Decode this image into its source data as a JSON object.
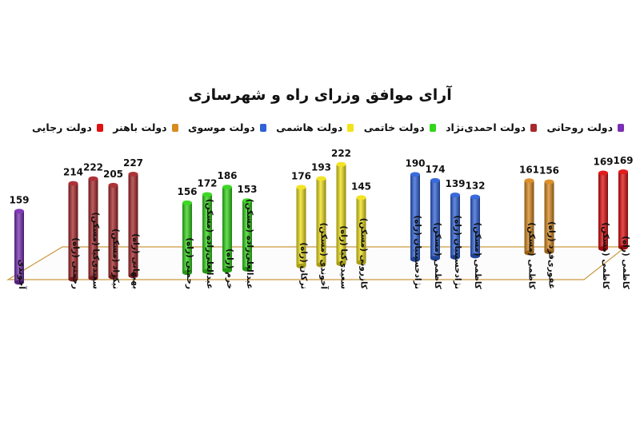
{
  "chart_data": {
    "type": "bar",
    "title": "آرای موافق وزرای راه و شهرسازی",
    "legend_placement": "top",
    "ylim": [
      0,
      240
    ],
    "grid": false,
    "series": [
      {
        "name": "دولت رجایی",
        "color": "#e01010",
        "bars": [
          {
            "label": "کاظمی (راه)",
            "value": 169
          },
          {
            "label": "کاظمی (مسکن)",
            "value": 169
          }
        ]
      },
      {
        "name": "دولت باهنر",
        "color": "#d98a20",
        "bars": [
          {
            "label": "غفوری‌فرد (راه)",
            "value": 156
          },
          {
            "label": "کاظمی (مسکن)",
            "value": 161
          }
        ]
      },
      {
        "name": "دولت موسوی",
        "color": "#2f62d8",
        "bars": [
          {
            "label": "کاظمی (مسکن)",
            "value": 132
          },
          {
            "label": "نژادحسینیان (راه)",
            "value": 139
          },
          {
            "label": "کاظمی (مسکن)",
            "value": 174
          },
          {
            "label": "نژادحسینیان (راه)",
            "value": 190
          }
        ]
      },
      {
        "name": "دولت هاشمی",
        "color": "#f2e21a",
        "bars": [
          {
            "label": "کازرونی (مسکن)",
            "value": 145
          },
          {
            "label": "سعیدی‌کیا (راه)",
            "value": 222
          },
          {
            "label": "آخوندی (مسکن)",
            "value": 193
          },
          {
            "label": "ترکان (راه)",
            "value": 176
          }
        ]
      },
      {
        "name": "دولت خاتمی",
        "color": "#33d61a",
        "bars": [
          {
            "label": "عبدالعلی‌زاده (مسکن)",
            "value": 153
          },
          {
            "label": "خرم (راه)",
            "value": 186
          },
          {
            "label": "عبدالعلی‌زاده (مسکن)",
            "value": 172
          },
          {
            "label": "رحمتی (راه)",
            "value": 156
          }
        ]
      },
      {
        "name": "دولت احمدی‌نژاد",
        "color": "#a8282c",
        "bars": [
          {
            "label": "بهبهانی (راه)",
            "value": 227
          },
          {
            "label": "نیکزاد (مسکن)",
            "value": 205
          },
          {
            "label": "سعیدی‌کیا (مسکن)",
            "value": 222
          },
          {
            "label": "رحمتی (راه)",
            "value": 214
          }
        ]
      },
      {
        "name": "دولت روحانی",
        "color": "#7a2fb4",
        "bars": [
          {
            "label": "آخوندی",
            "value": 159
          }
        ]
      }
    ]
  }
}
